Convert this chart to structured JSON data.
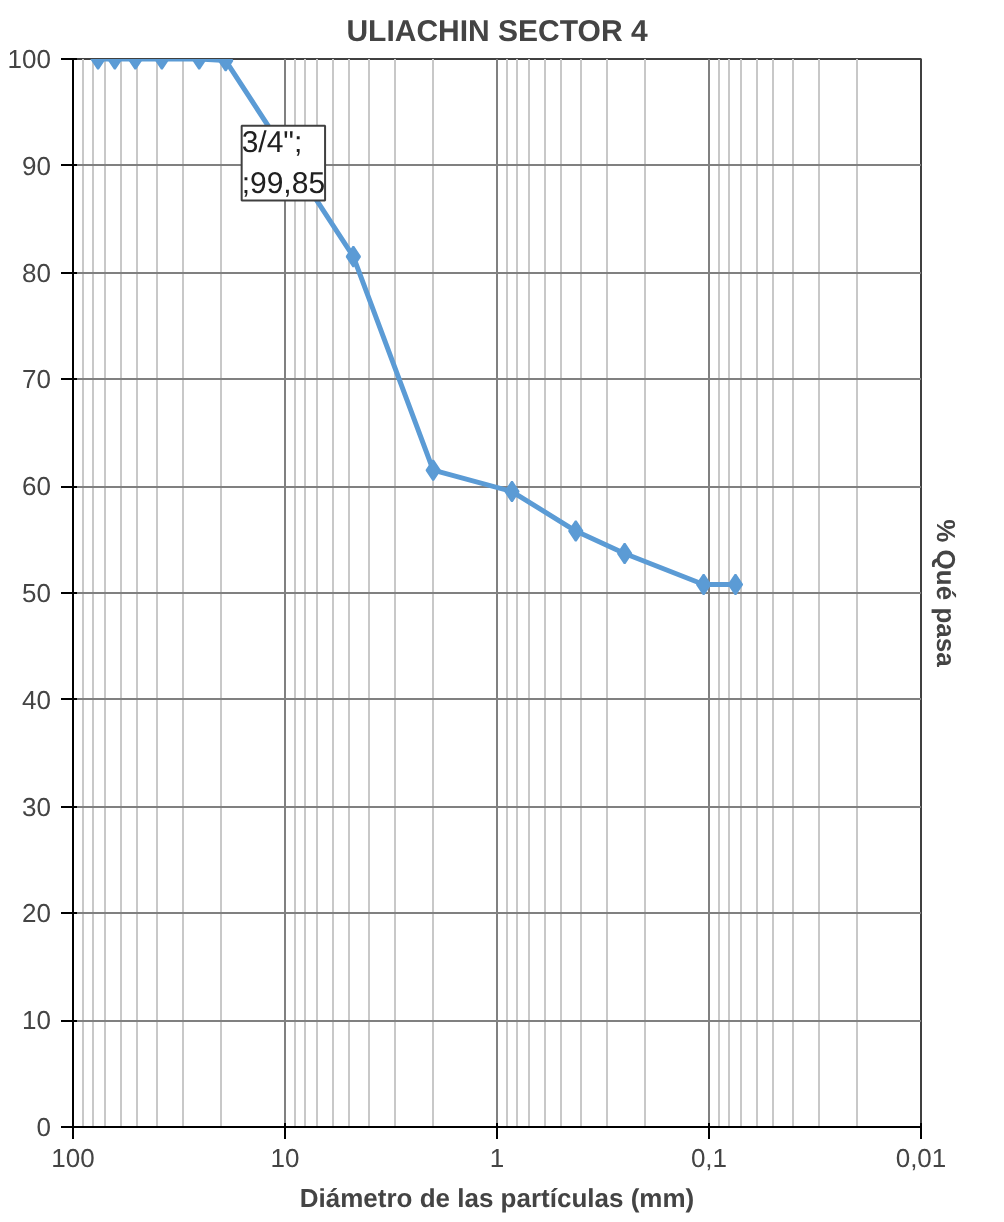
{
  "chart_data": {
    "type": "line",
    "title": "ULIACHIN SECTOR 4",
    "xlabel": "Diámetro de las partículas (mm)",
    "ylabel": "% Qué pasa",
    "x": [
      76.2,
      63.5,
      50.8,
      38.1,
      25.4,
      19.05,
      4.76,
      2.0,
      0.85,
      0.425,
      0.25,
      0.106,
      0.075
    ],
    "series": [
      {
        "color": "#5b9bd5",
        "values": [
          100,
          100,
          100,
          100,
          100,
          99.85,
          81.5,
          61.5,
          59.5,
          55.8,
          53.7,
          50.8,
          50.8
        ]
      }
    ],
    "log": "x",
    "xlim": [
      100,
      0.01
    ],
    "xticks": [
      100,
      10,
      1,
      {
        "value": 0.1,
        "label": "0,1"
      },
      {
        "value": 0.01,
        "label": "0,01"
      }
    ],
    "ylim": [
      0,
      100
    ],
    "yticks": [
      0,
      10,
      20,
      30,
      40,
      50,
      60,
      70,
      80,
      90,
      100
    ],
    "grid": true,
    "marker": "diamond",
    "line_style": "solid",
    "annotations": [
      {
        "text": "3/4\";\n;99,85",
        "x": 19.05,
        "y": 99.85
      }
    ]
  }
}
